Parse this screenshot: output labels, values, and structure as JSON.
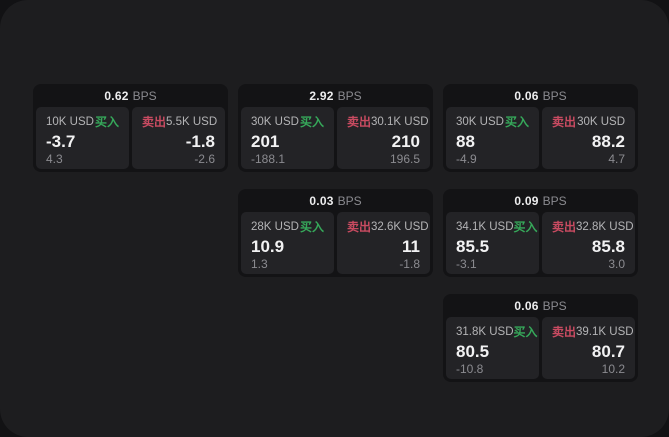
{
  "units": {
    "bps": "BPS"
  },
  "labels": {
    "buy": "买入",
    "sell": "卖出"
  },
  "colors": {
    "buy_green": "#36a85a",
    "sell_red": "#c94b61",
    "window_bg": "#1d1d1f",
    "card_bg": "#131315",
    "panel_bg": "#232326"
  },
  "cards": [
    {
      "bps": "0.62",
      "buy": {
        "amount": "10K USD",
        "price": "-3.7",
        "delta": "4.3"
      },
      "sell": {
        "amount": "5.5K USD",
        "price": "-1.8",
        "delta": "-2.6"
      }
    },
    {
      "bps": "2.92",
      "buy": {
        "amount": "30K USD",
        "price": "201",
        "delta": "-188.1"
      },
      "sell": {
        "amount": "30.1K USD",
        "price": "210",
        "delta": "196.5"
      }
    },
    {
      "bps": "0.06",
      "buy": {
        "amount": "30K USD",
        "price": "88",
        "delta": "-4.9"
      },
      "sell": {
        "amount": "30K USD",
        "price": "88.2",
        "delta": "4.7"
      }
    },
    {
      "bps": "0.03",
      "buy": {
        "amount": "28K USD",
        "price": "10.9",
        "delta": "1.3"
      },
      "sell": {
        "amount": "32.6K USD",
        "price": "11",
        "delta": "-1.8"
      }
    },
    {
      "bps": "0.09",
      "buy": {
        "amount": "34.1K USD",
        "price": "85.5",
        "delta": "-3.1"
      },
      "sell": {
        "amount": "32.8K USD",
        "price": "85.8",
        "delta": "3.0"
      }
    },
    {
      "bps": "0.06",
      "buy": {
        "amount": "31.8K USD",
        "price": "80.5",
        "delta": "-10.8"
      },
      "sell": {
        "amount": "39.1K USD",
        "price": "80.7",
        "delta": "10.2"
      }
    }
  ]
}
